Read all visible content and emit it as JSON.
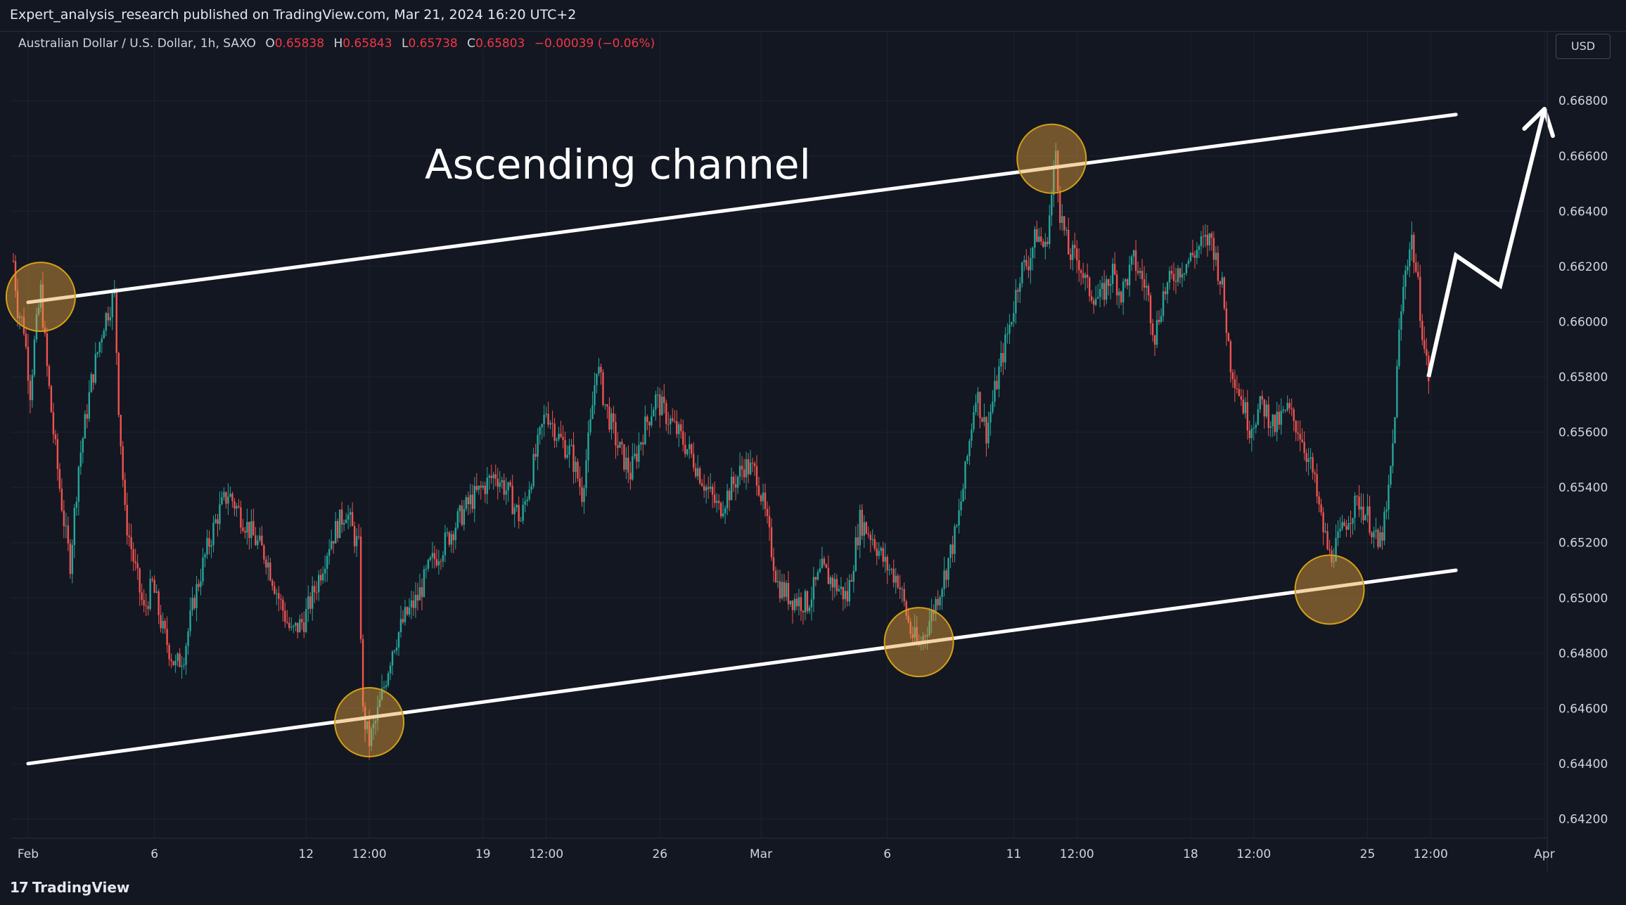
{
  "header": {
    "publisher_text": "Expert_analysis_research published on TradingView.com, Mar 21, 2024 16:20 UTC+2"
  },
  "legend": {
    "symbol": "Australian Dollar / U.S. Dollar, 1h, SAXO",
    "open_label": "O",
    "open": "0.65838",
    "high_label": "H",
    "high": "0.65843",
    "low_label": "L",
    "low": "0.65738",
    "close_label": "C",
    "close": "0.65803",
    "change": "−0.00039 (−0.06%)"
  },
  "currency_button": "USD",
  "footer": {
    "brand": "TradingView",
    "logo_icon": "tradingview-logo-icon"
  },
  "colors": {
    "background": "#131722",
    "grid": "#1e222d",
    "up": "#26a69a",
    "down": "#ef5350",
    "annotation": "#ffffff",
    "marker_fill": "#e6a23c",
    "text": "#d1d4dc"
  },
  "chart_data": {
    "type": "candlestick",
    "title": "Australian Dollar / U.S. Dollar, 1h, SAXO",
    "annotation_text": "Ascending channel",
    "x_tick_labels": [
      "Feb",
      "6",
      "12",
      "12:00",
      "19",
      "12:00",
      "26",
      "Mar",
      "6",
      "11",
      "12:00",
      "18",
      "12:00",
      "25",
      "12:00",
      "Apr"
    ],
    "x_tick_dates": [
      "2024-02-01",
      "2024-02-06",
      "2024-02-12",
      "2024-02-14 12:00",
      "2024-02-19",
      "2024-02-21 12:00",
      "2024-02-26",
      "2024-03-01",
      "2024-03-06",
      "2024-03-11",
      "2024-03-13 12:00",
      "2024-03-18",
      "2024-03-20 12:00",
      "2024-03-25",
      "2024-03-27 12:00",
      "2024-04-01"
    ],
    "y_tick_labels": [
      "0.66800",
      "0.66600",
      "0.66400",
      "0.66200",
      "0.66000",
      "0.65800",
      "0.65600",
      "0.65400",
      "0.65200",
      "0.65000",
      "0.64800",
      "0.64600",
      "0.64400",
      "0.64200"
    ],
    "ylim": [
      0.6413,
      0.6691
    ],
    "price_path": [
      [
        "2024-01-31 10:00",
        0.6622
      ],
      [
        "2024-01-31 14:00",
        0.6605
      ],
      [
        "2024-01-31 20:00",
        0.6598
      ],
      [
        "2024-02-01 02:00",
        0.6575
      ],
      [
        "2024-02-01 06:00",
        0.6592
      ],
      [
        "2024-02-01 12:00",
        0.6611
      ],
      [
        "2024-02-01 18:00",
        0.6583
      ],
      [
        "2024-02-02 00:00",
        0.656
      ],
      [
        "2024-02-02 06:00",
        0.654
      ],
      [
        "2024-02-02 12:00",
        0.6522
      ],
      [
        "2024-02-02 16:00",
        0.6513
      ],
      [
        "2024-02-03 00:00",
        0.6548
      ],
      [
        "2024-02-03 12:00",
        0.6578
      ],
      [
        "2024-02-04 00:00",
        0.66
      ],
      [
        "2024-02-04 10:00",
        0.661
      ],
      [
        "2024-02-04 14:00",
        0.657
      ],
      [
        "2024-02-04 20:00",
        0.653
      ],
      [
        "2024-02-05 06:00",
        0.651
      ],
      [
        "2024-02-05 14:00",
        0.6495
      ],
      [
        "2024-02-05 22:00",
        0.6505
      ],
      [
        "2024-02-06 08:00",
        0.6488
      ],
      [
        "2024-02-06 20:00",
        0.6475
      ],
      [
        "2024-02-07 04:00",
        0.648
      ],
      [
        "2024-02-07 14:00",
        0.65
      ],
      [
        "2024-02-08 00:00",
        0.6515
      ],
      [
        "2024-02-08 12:00",
        0.653
      ],
      [
        "2024-02-08 22:00",
        0.6538
      ],
      [
        "2024-02-09 10:00",
        0.653
      ],
      [
        "2024-02-09 22:00",
        0.6522
      ],
      [
        "2024-02-10 10:00",
        0.6515
      ],
      [
        "2024-02-10 22:00",
        0.65
      ],
      [
        "2024-02-11 10:00",
        0.6487
      ],
      [
        "2024-02-11 22:00",
        0.6492
      ],
      [
        "2024-02-12 10:00",
        0.6505
      ],
      [
        "2024-02-12 22:00",
        0.652
      ],
      [
        "2024-02-13 06:00",
        0.6526
      ],
      [
        "2024-02-13 14:00",
        0.6532
      ],
      [
        "2024-02-13 22:00",
        0.6522
      ],
      [
        "2024-02-14 02:00",
        0.6518
      ],
      [
        "2024-02-14 06:00",
        0.6458
      ],
      [
        "2024-02-14 12:00",
        0.6448
      ],
      [
        "2024-02-14 18:00",
        0.6455
      ],
      [
        "2024-02-15 02:00",
        0.6468
      ],
      [
        "2024-02-15 10:00",
        0.6482
      ],
      [
        "2024-02-15 22:00",
        0.6493
      ],
      [
        "2024-02-16 10:00",
        0.65
      ],
      [
        "2024-02-16 22:00",
        0.6512
      ],
      [
        "2024-02-17 12:00",
        0.652
      ],
      [
        "2024-02-18 00:00",
        0.6528
      ],
      [
        "2024-02-18 12:00",
        0.6535
      ],
      [
        "2024-02-19 00:00",
        0.654
      ],
      [
        "2024-02-19 12:00",
        0.6545
      ],
      [
        "2024-02-20 00:00",
        0.6538
      ],
      [
        "2024-02-20 12:00",
        0.6528
      ],
      [
        "2024-02-21 00:00",
        0.6548
      ],
      [
        "2024-02-21 12:00",
        0.6568
      ],
      [
        "2024-02-22 00:00",
        0.6558
      ],
      [
        "2024-02-22 12:00",
        0.6552
      ],
      [
        "2024-02-22 22:00",
        0.6538
      ],
      [
        "2024-02-23 06:00",
        0.6562
      ],
      [
        "2024-02-23 12:00",
        0.6585
      ],
      [
        "2024-02-23 20:00",
        0.657
      ],
      [
        "2024-02-24 08:00",
        0.6555
      ],
      [
        "2024-02-24 20:00",
        0.6545
      ],
      [
        "2024-02-25 08:00",
        0.656
      ],
      [
        "2024-02-25 20:00",
        0.6572
      ],
      [
        "2024-02-26 08:00",
        0.6565
      ],
      [
        "2024-02-26 20:00",
        0.6558
      ],
      [
        "2024-02-27 08:00",
        0.655
      ],
      [
        "2024-02-27 20:00",
        0.654
      ],
      [
        "2024-02-28 08:00",
        0.6532
      ],
      [
        "2024-02-28 20:00",
        0.654
      ],
      [
        "2024-02-29 08:00",
        0.6548
      ],
      [
        "2024-02-29 20:00",
        0.6545
      ],
      [
        "2024-03-01 04:00",
        0.653
      ],
      [
        "2024-03-01 16:00",
        0.6505
      ],
      [
        "2024-03-02 04:00",
        0.65
      ],
      [
        "2024-03-02 20:00",
        0.6498
      ],
      [
        "2024-03-03 10:00",
        0.651
      ],
      [
        "2024-03-03 22:00",
        0.6505
      ],
      [
        "2024-03-04 10:00",
        0.65
      ],
      [
        "2024-03-04 22:00",
        0.6528
      ],
      [
        "2024-03-05 10:00",
        0.6522
      ],
      [
        "2024-03-05 22:00",
        0.6512
      ],
      [
        "2024-03-06 10:00",
        0.6507
      ],
      [
        "2024-03-06 22:00",
        0.6488
      ],
      [
        "2024-03-07 06:00",
        0.6482
      ],
      [
        "2024-03-07 18:00",
        0.6494
      ],
      [
        "2024-03-08 06:00",
        0.6508
      ],
      [
        "2024-03-08 18:00",
        0.6525
      ],
      [
        "2024-03-09 02:00",
        0.6545
      ],
      [
        "2024-03-09 12:00",
        0.6575
      ],
      [
        "2024-03-09 22:00",
        0.656
      ],
      [
        "2024-03-10 10:00",
        0.6582
      ],
      [
        "2024-03-10 22:00",
        0.6602
      ],
      [
        "2024-03-11 06:00",
        0.6618
      ],
      [
        "2024-03-11 14:00",
        0.6622
      ],
      [
        "2024-03-11 22:00",
        0.6632
      ],
      [
        "2024-03-12 06:00",
        0.6626
      ],
      [
        "2024-03-12 12:00",
        0.6645
      ],
      [
        "2024-03-12 16:00",
        0.6662
      ],
      [
        "2024-03-12 20:00",
        0.664
      ],
      [
        "2024-03-13 04:00",
        0.6625
      ],
      [
        "2024-03-13 14:00",
        0.6622
      ],
      [
        "2024-03-13 22:00",
        0.6612
      ],
      [
        "2024-03-14 10:00",
        0.6608
      ],
      [
        "2024-03-14 22:00",
        0.6618
      ],
      [
        "2024-03-15 06:00",
        0.661
      ],
      [
        "2024-03-15 18:00",
        0.6622
      ],
      [
        "2024-03-16 06:00",
        0.6612
      ],
      [
        "2024-03-16 14:00",
        0.6595
      ],
      [
        "2024-03-16 22:00",
        0.661
      ],
      [
        "2024-03-17 10:00",
        0.6618
      ],
      [
        "2024-03-17 22:00",
        0.6622
      ],
      [
        "2024-03-18 10:00",
        0.6628
      ],
      [
        "2024-03-18 20:00",
        0.663
      ],
      [
        "2024-03-19 06:00",
        0.6612
      ],
      [
        "2024-03-19 14:00",
        0.6585
      ],
      [
        "2024-03-19 22:00",
        0.6575
      ],
      [
        "2024-03-20 08:00",
        0.6562
      ],
      [
        "2024-03-20 20:00",
        0.657
      ],
      [
        "2024-03-21 08:00",
        0.6562
      ],
      [
        "2024-03-21 20:00",
        0.6568
      ],
      [
        "2024-03-22 08:00",
        0.656
      ],
      [
        "2024-03-22 20:00",
        0.6545
      ],
      [
        "2024-03-23 04:00",
        0.6528
      ],
      [
        "2024-03-23 12:00",
        0.6515
      ],
      [
        "2024-03-23 20:00",
        0.652
      ],
      [
        "2024-03-24 06:00",
        0.653
      ],
      [
        "2024-03-24 16:00",
        0.6535
      ],
      [
        "2024-03-25 02:00",
        0.6528
      ],
      [
        "2024-03-25 10:00",
        0.6518
      ],
      [
        "2024-03-25 18:00",
        0.653
      ],
      [
        "2024-03-26 00:00",
        0.6555
      ],
      [
        "2024-03-26 06:00",
        0.6595
      ],
      [
        "2024-03-26 12:00",
        0.662
      ],
      [
        "2024-03-26 18:00",
        0.663
      ],
      [
        "2024-03-27 00:00",
        0.6612
      ],
      [
        "2024-03-27 06:00",
        0.659
      ],
      [
        "2024-03-27 10:00",
        0.658
      ]
    ],
    "channel_upper": [
      [
        "2024-02-01 00:00",
        0.6607
      ],
      [
        "2024-03-28 12:00",
        0.6675
      ]
    ],
    "channel_lower": [
      [
        "2024-02-01 00:00",
        0.644
      ],
      [
        "2024-03-28 12:00",
        0.651
      ]
    ],
    "touch_points": [
      [
        "2024-02-01 12:00",
        0.6609
      ],
      [
        "2024-02-14 12:00",
        0.6455
      ],
      [
        "2024-03-07 06:00",
        0.6484
      ],
      [
        "2024-03-12 12:00",
        0.6659
      ],
      [
        "2024-03-23 12:00",
        0.6503
      ]
    ],
    "projection_path": [
      [
        "2024-03-27 10:00",
        0.658
      ],
      [
        "2024-03-28 12:00",
        0.6624
      ],
      [
        "2024-03-30 06:00",
        0.6613
      ],
      [
        "2024-04-01 00:00",
        0.6677
      ]
    ]
  }
}
